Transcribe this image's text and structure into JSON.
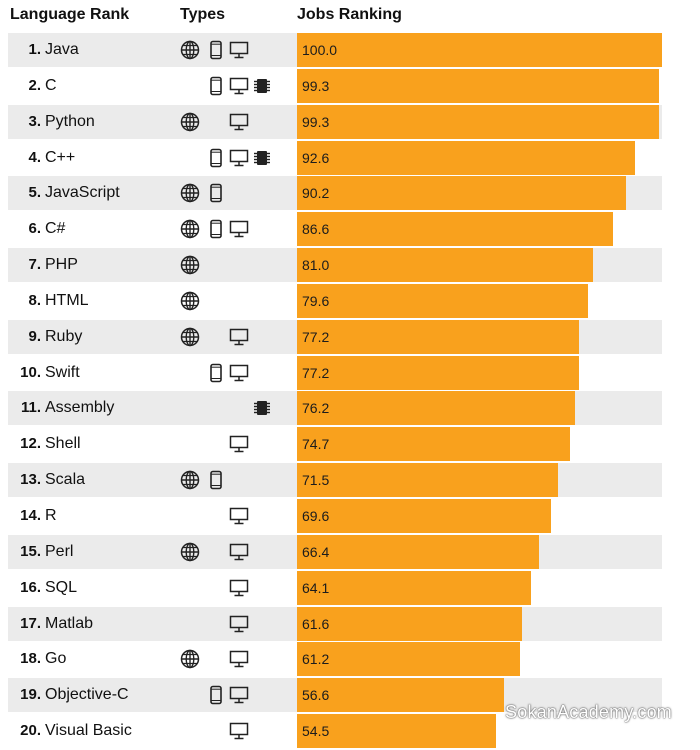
{
  "headers": {
    "language_rank": "Language Rank",
    "types": "Types",
    "jobs_ranking": "Jobs Ranking"
  },
  "watermark": "SokanAcademy.com",
  "colors": {
    "bar": "#f9a11d",
    "row_alt": "#ebebeb"
  },
  "icon_legend": {
    "web": "globe-icon",
    "mobile": "mobile-phone-icon",
    "desktop": "desktop-monitor-icon",
    "embedded": "chip-icon"
  },
  "chart_data": {
    "type": "bar",
    "orientation": "horizontal",
    "xlim": [
      0,
      100
    ],
    "categories": [
      "Java",
      "C",
      "Python",
      "C++",
      "JavaScript",
      "C#",
      "PHP",
      "HTML",
      "Ruby",
      "Swift",
      "Assembly",
      "Shell",
      "Scala",
      "R",
      "Perl",
      "SQL",
      "Matlab",
      "Go",
      "Objective-C",
      "Visual Basic"
    ],
    "values": [
      100.0,
      99.3,
      99.3,
      92.6,
      90.2,
      86.6,
      81.0,
      79.6,
      77.2,
      77.2,
      76.2,
      74.7,
      71.5,
      69.6,
      66.4,
      64.1,
      61.6,
      61.2,
      56.6,
      54.5
    ],
    "value_labels": [
      "100.0",
      "99.3",
      "99.3",
      "92.6",
      "90.2",
      "86.6",
      "81.0",
      "79.6",
      "77.2",
      "77.2",
      "76.2",
      "74.7",
      "71.5",
      "69.6",
      "66.4",
      "64.1",
      "61.6",
      "61.2",
      "56.6",
      "54.5"
    ],
    "rows": [
      {
        "rank": "1.",
        "name": "Java",
        "types": [
          "web",
          "mobile",
          "desktop"
        ]
      },
      {
        "rank": "2.",
        "name": "C",
        "types": [
          "mobile",
          "desktop",
          "embedded"
        ]
      },
      {
        "rank": "3.",
        "name": "Python",
        "types": [
          "web",
          "desktop"
        ]
      },
      {
        "rank": "4.",
        "name": "C++",
        "types": [
          "mobile",
          "desktop",
          "embedded"
        ]
      },
      {
        "rank": "5.",
        "name": "JavaScript",
        "types": [
          "web",
          "mobile"
        ]
      },
      {
        "rank": "6.",
        "name": "C#",
        "types": [
          "web",
          "mobile",
          "desktop"
        ]
      },
      {
        "rank": "7.",
        "name": "PHP",
        "types": [
          "web"
        ]
      },
      {
        "rank": "8.",
        "name": "HTML",
        "types": [
          "web"
        ]
      },
      {
        "rank": "9.",
        "name": "Ruby",
        "types": [
          "web",
          "desktop"
        ]
      },
      {
        "rank": "10.",
        "name": "Swift",
        "types": [
          "mobile",
          "desktop"
        ]
      },
      {
        "rank": "11.",
        "name": "Assembly",
        "types": [
          "embedded"
        ]
      },
      {
        "rank": "12.",
        "name": "Shell",
        "types": [
          "desktop"
        ]
      },
      {
        "rank": "13.",
        "name": "Scala",
        "types": [
          "web",
          "mobile"
        ]
      },
      {
        "rank": "14.",
        "name": "R",
        "types": [
          "desktop"
        ]
      },
      {
        "rank": "15.",
        "name": "Perl",
        "types": [
          "web",
          "desktop"
        ]
      },
      {
        "rank": "16.",
        "name": "SQL",
        "types": [
          "desktop"
        ]
      },
      {
        "rank": "17.",
        "name": "Matlab",
        "types": [
          "desktop"
        ]
      },
      {
        "rank": "18.",
        "name": "Go",
        "types": [
          "web",
          "desktop"
        ]
      },
      {
        "rank": "19.",
        "name": "Objective-C",
        "types": [
          "mobile",
          "desktop"
        ]
      },
      {
        "rank": "20.",
        "name": "Visual Basic",
        "types": [
          "desktop"
        ]
      }
    ]
  }
}
